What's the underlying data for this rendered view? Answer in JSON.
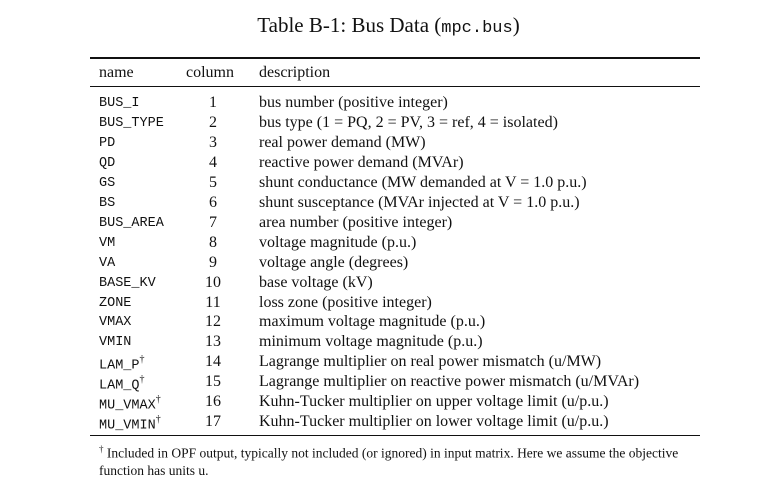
{
  "table": {
    "caption": "Table B-1: Bus Data",
    "caption_code": "mpc.bus",
    "headers": {
      "name": "name",
      "column": "column",
      "description": "description"
    },
    "rows": [
      {
        "name": "BUS_I",
        "mark": "",
        "column": "1",
        "description": "bus number (positive integer)"
      },
      {
        "name": "BUS_TYPE",
        "mark": "",
        "column": "2",
        "description": "bus type (1 = PQ, 2 = PV, 3 = ref, 4 = isolated)"
      },
      {
        "name": "PD",
        "mark": "",
        "column": "3",
        "description": "real power demand (MW)"
      },
      {
        "name": "QD",
        "mark": "",
        "column": "4",
        "description": "reactive power demand (MVAr)"
      },
      {
        "name": "GS",
        "mark": "",
        "column": "5",
        "description": "shunt conductance (MW demanded at V = 1.0 p.u.)"
      },
      {
        "name": "BS",
        "mark": "",
        "column": "6",
        "description": "shunt susceptance (MVAr injected at V = 1.0 p.u.)"
      },
      {
        "name": "BUS_AREA",
        "mark": "",
        "column": "7",
        "description": "area number (positive integer)"
      },
      {
        "name": "VM",
        "mark": "",
        "column": "8",
        "description": "voltage magnitude (p.u.)"
      },
      {
        "name": "VA",
        "mark": "",
        "column": "9",
        "description": "voltage angle (degrees)"
      },
      {
        "name": "BASE_KV",
        "mark": "",
        "column": "10",
        "description": "base voltage (kV)"
      },
      {
        "name": "ZONE",
        "mark": "",
        "column": "11",
        "description": "loss zone (positive integer)"
      },
      {
        "name": "VMAX",
        "mark": "",
        "column": "12",
        "description": "maximum voltage magnitude (p.u.)"
      },
      {
        "name": "VMIN",
        "mark": "",
        "column": "13",
        "description": "minimum voltage magnitude (p.u.)"
      },
      {
        "name": "LAM_P",
        "mark": "†",
        "column": "14",
        "description": "Lagrange multiplier on real power mismatch (u/MW)"
      },
      {
        "name": "LAM_Q",
        "mark": "†",
        "column": "15",
        "description": "Lagrange multiplier on reactive power mismatch (u/MVAr)"
      },
      {
        "name": "MU_VMAX",
        "mark": "†",
        "column": "16",
        "description": "Kuhn-Tucker multiplier on upper voltage limit (u/p.u.)"
      },
      {
        "name": "MU_VMIN",
        "mark": "†",
        "column": "17",
        "description": "Kuhn-Tucker multiplier on lower voltage limit (u/p.u.)"
      }
    ],
    "footnote_mark": "†",
    "footnote": "Included in OPF output, typically not included (or ignored) in input matrix. Here we assume the objective function has units u."
  }
}
